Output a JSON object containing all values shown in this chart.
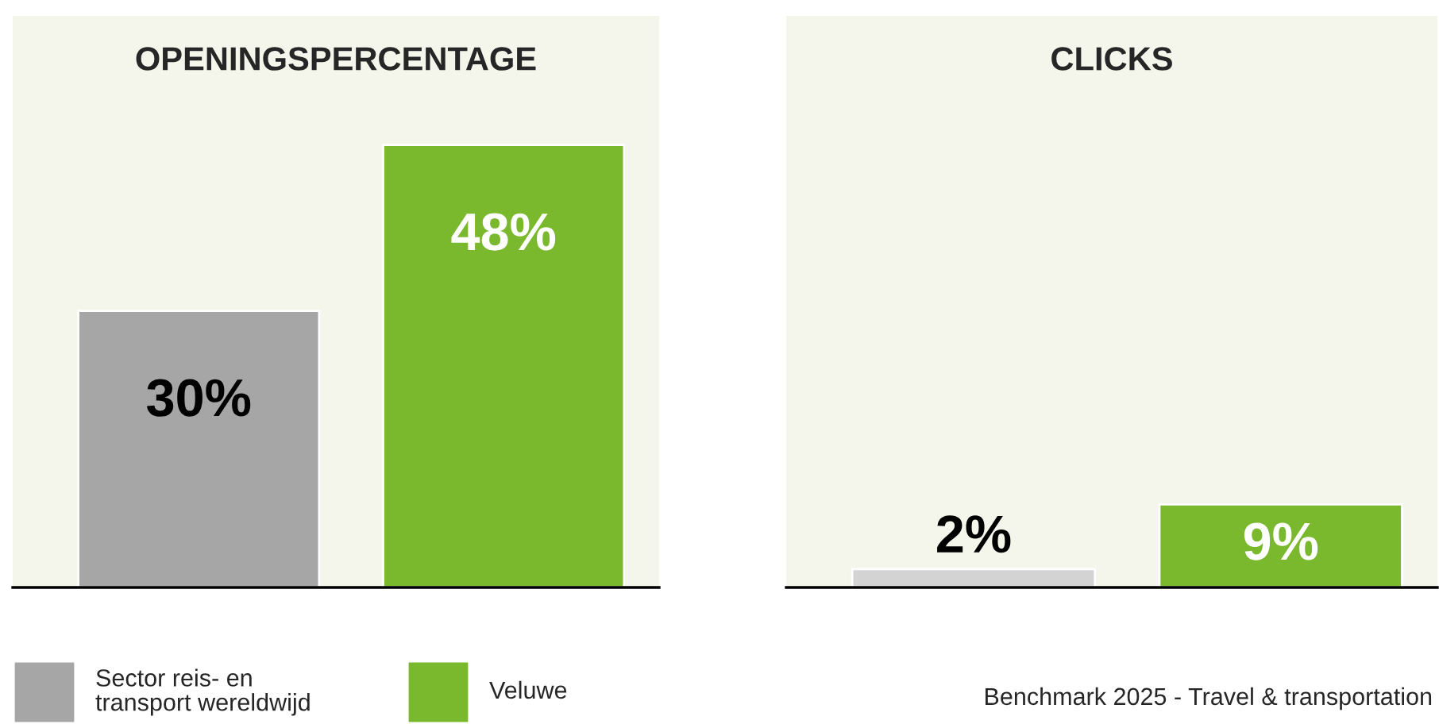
{
  "chart_data": [
    {
      "type": "bar",
      "title": "OPENINGSPERCENTAGE",
      "categories": [
        null,
        null
      ],
      "ylim": [
        0,
        62
      ],
      "stacked": true,
      "legend": "bottom",
      "series": [
        {
          "name": "Sector reis- en transport wereldwijd",
          "color": "#a6a6a6",
          "values": [
            30,
            null
          ],
          "value_labels": [
            "30%",
            null
          ]
        },
        {
          "name": "Veluwe",
          "color": "#7ab92e",
          "values": [
            null,
            48
          ],
          "value_labels": [
            null,
            "48%"
          ]
        }
      ]
    },
    {
      "type": "bar",
      "title": "CLICKS",
      "categories": [
        null,
        null
      ],
      "ylim": [
        0,
        62
      ],
      "stacked": true,
      "annotations": [
        "Benchmark 2025 - Travel & transportation"
      ],
      "series": [
        {
          "color": "#d3d3d3",
          "values": [
            2,
            null
          ],
          "value_labels": [
            "2%",
            null
          ]
        },
        {
          "color": "#7ab92e",
          "values": [
            null,
            9
          ],
          "value_labels": [
            null,
            "9%"
          ]
        }
      ]
    }
  ]
}
